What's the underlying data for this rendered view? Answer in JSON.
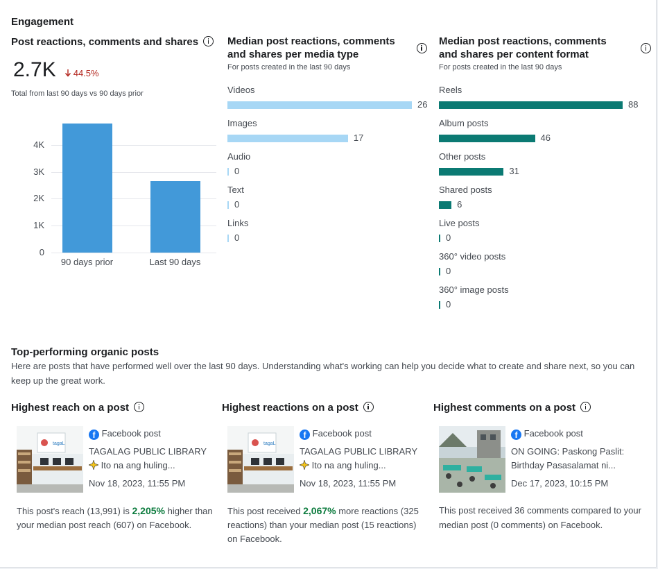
{
  "engagement": {
    "title": "Engagement",
    "total_panel": {
      "title": "Post reactions, comments and shares",
      "value": "2.7K",
      "delta": "44.5%",
      "caption": "Total from last 90 days vs 90 days prior",
      "chart_data": {
        "type": "bar",
        "categories": [
          "90 days prior",
          "Last 90 days"
        ],
        "values": [
          4800,
          2660
        ],
        "ylim": [
          0,
          5000
        ],
        "yticks": [
          "0",
          "1K",
          "2K",
          "3K",
          "4K"
        ],
        "grid": true,
        "color": "#4299d9"
      }
    },
    "media_type_panel": {
      "title": "Median post reactions, comments and shares per media type",
      "subtitle": "For posts created in the last 90 days",
      "color": "#a7d7f5",
      "chart_data": {
        "type": "bar",
        "orientation": "horizontal",
        "categories": [
          "Videos",
          "Images",
          "Audio",
          "Text",
          "Links"
        ],
        "values": [
          26,
          17,
          0,
          0,
          0
        ]
      }
    },
    "content_format_panel": {
      "title": "Median post reactions, comments and shares per content format",
      "subtitle": "For posts created in the last 90 days",
      "color": "#0b7a73",
      "chart_data": {
        "type": "bar",
        "orientation": "horizontal",
        "categories": [
          "Reels",
          "Album posts",
          "Other posts",
          "Shared posts",
          "Live posts",
          "360° video posts",
          "360° image posts"
        ],
        "values": [
          88,
          46,
          31,
          6,
          0,
          0,
          0
        ]
      }
    }
  },
  "top_posts": {
    "title": "Top-performing organic posts",
    "description": "Here are posts that have performed well over the last 90 days. Understanding what's working can help you decide what to create and share next, so you can keep up the great work.",
    "cards": [
      {
        "heading": "Highest reach on a post",
        "post_type": "Facebook post",
        "line1": "TAGALAG PUBLIC LIBRARY",
        "line2": "Ito na ang huling...",
        "date": "Nov 18, 2023, 11:55 PM",
        "blurb_pre": "This post's reach (13,991) is ",
        "blurb_highlight": "2,205%",
        "blurb_post": " higher than your median post reach (607) on Facebook."
      },
      {
        "heading": "Highest reactions on a post",
        "post_type": "Facebook post",
        "line1": "TAGALAG PUBLIC LIBRARY",
        "line2": "Ito na ang huling...",
        "date": "Nov 18, 2023, 11:55 PM",
        "blurb_pre": "This post received ",
        "blurb_highlight": "2,067%",
        "blurb_post": " more reactions (325 reactions) than your median post (15 reactions) on Facebook."
      },
      {
        "heading": "Highest comments on a post",
        "post_type": "Facebook post",
        "line1": "ON GOING: Paskong Paslit:",
        "line2": "Birthday Pasasalamat ni...",
        "date": "Dec 17, 2023, 10:15 PM",
        "blurb_pre": "This post received 36 comments compared to your median post (0 comments) on Facebook.",
        "blurb_highlight": "",
        "blurb_post": ""
      }
    ]
  }
}
